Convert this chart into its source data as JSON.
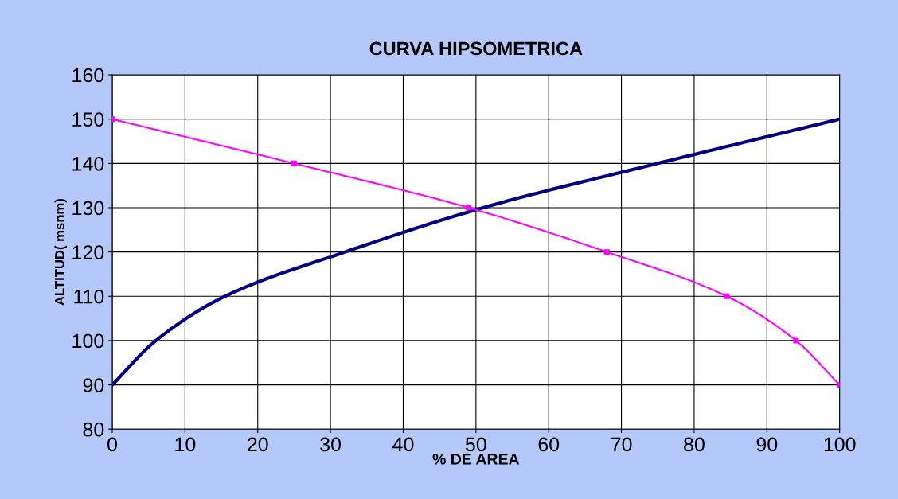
{
  "chart_data": {
    "type": "line",
    "title": "CURVA HIPSOMETRICA",
    "xlabel": "% DE AREA",
    "ylabel": "ALTITUD( msnm)",
    "xlim": [
      0,
      100
    ],
    "xticks": [
      0,
      10,
      20,
      30,
      40,
      50,
      60,
      70,
      80,
      90,
      100
    ],
    "ylim": [
      80,
      160
    ],
    "yticks": [
      80,
      90,
      100,
      110,
      120,
      130,
      140,
      150,
      160
    ],
    "grid": true,
    "legend": false,
    "series": [
      {
        "color": "#000080",
        "marker": "none",
        "x": [
          0,
          6,
          15.5,
          32,
          51,
          75,
          100
        ],
        "values": [
          90,
          100,
          110,
          120,
          130,
          140,
          150
        ]
      },
      {
        "color": "#ff00ff",
        "marker": "square",
        "x": [
          0,
          25,
          49,
          68,
          84.5,
          94,
          100
        ],
        "values": [
          150,
          140,
          130,
          120,
          110,
          100,
          90
        ]
      }
    ]
  }
}
